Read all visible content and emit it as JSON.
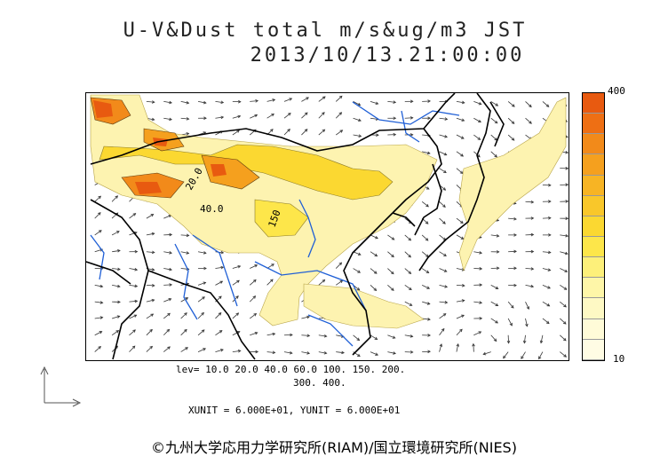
{
  "title": {
    "line1": "U-V&Dust total m/s&ug/m3 JST",
    "line2": "2013/10/13.21:00:00"
  },
  "legend": {
    "max_label": "400",
    "min_label": "10",
    "colors": [
      "#e85a10",
      "#ee6f14",
      "#f28a1a",
      "#f5a01e",
      "#f7b424",
      "#f9c72a",
      "#fbd831",
      "#fde64a",
      "#fdf07a",
      "#fef6a8",
      "#fef9c4",
      "#fffbd8",
      "#fffce4"
    ]
  },
  "levels": {
    "line1": "lev= 10.0 20.0 40.0 60.0 100. 150. 200.",
    "line2": "300. 400."
  },
  "units": "XUNIT = 6.000E+01, YUNIT = 6.000E+01",
  "contour_labels": [
    "20.0",
    "40.0",
    "150"
  ],
  "copyright": "©九州大学応用力学研究所(RIAM)/国立環境研究所(NIES)",
  "colors": {
    "dust_light": "#fdf3b0",
    "dust_mid": "#fbd831",
    "dust_high": "#f28a1a",
    "dust_max": "#e85a10",
    "coast": "#000000",
    "river": "#1f5fd6",
    "arrow": "#333333"
  }
}
